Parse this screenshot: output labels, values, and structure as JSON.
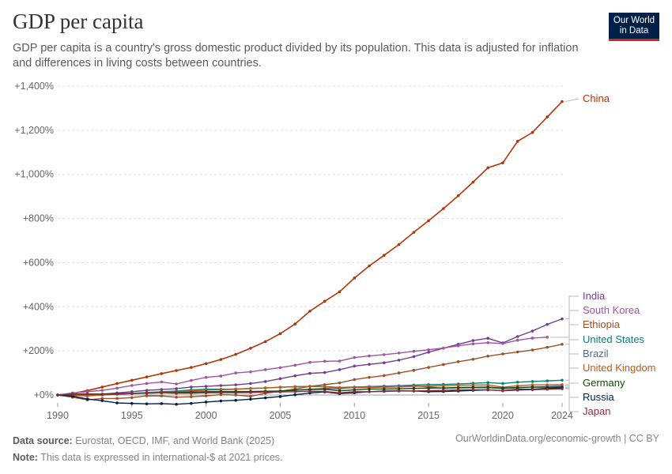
{
  "header": {
    "title": "GDP per capita",
    "subtitle": "GDP per capita is a country's gross domestic product divided by its population. This data is adjusted for inflation and differences in living costs between countries.",
    "logo_line1": "Our World",
    "logo_line2": "in Data"
  },
  "footer": {
    "source_label": "Data source:",
    "source_text": "Eurostat, OECD, IMF, and World Bank (2025)",
    "note_label": "Note:",
    "note_text": "This data is expressed in international-$ at 2021 prices.",
    "link": "OurWorldinData.org/economic-growth | CC BY"
  },
  "chart_data": {
    "type": "line",
    "title": "GDP per capita",
    "ylabel": "",
    "xlabel": "",
    "ylim": [
      -40,
      1400
    ],
    "xlim": [
      1990,
      2024
    ],
    "y_ticks": [
      0,
      200,
      400,
      600,
      800,
      1000,
      1200,
      1400
    ],
    "y_tick_labels": [
      "+0%",
      "+200%",
      "+400%",
      "+600%",
      "+800%",
      "+1,000%",
      "+1,200%",
      "+1,400%"
    ],
    "x_ticks": [
      1990,
      1995,
      2000,
      2005,
      2010,
      2015,
      2020,
      2024
    ],
    "x_tick_labels": [
      "1990",
      "1995",
      "2000",
      "2005",
      "2010",
      "2015",
      "2020",
      "2024"
    ],
    "grid": "horizontal dashed",
    "legend": "right, direct labels",
    "series": [
      {
        "name": "China",
        "color": "#b13507",
        "x": [
          1990,
          1991,
          1992,
          1993,
          1994,
          1995,
          1996,
          1997,
          1998,
          1999,
          2000,
          2001,
          2002,
          2003,
          2004,
          2005,
          2006,
          2007,
          2008,
          2009,
          2010,
          2011,
          2012,
          2013,
          2014,
          2015,
          2016,
          2017,
          2018,
          2019,
          2020,
          2021,
          2022,
          2023,
          2024
        ],
        "values": [
          0,
          7,
          20,
          36,
          52,
          67,
          82,
          97,
          111,
          125,
          142,
          161,
          184,
          212,
          242,
          278,
          322,
          380,
          425,
          468,
          530,
          585,
          633,
          682,
          737,
          790,
          845,
          903,
          965,
          1030,
          1052,
          1150,
          1190,
          1260,
          1330
        ]
      },
      {
        "name": "India",
        "color": "#6d3e91",
        "x": [
          1990,
          1991,
          1992,
          1993,
          1994,
          1995,
          1996,
          1997,
          1998,
          1999,
          2000,
          2001,
          2002,
          2003,
          2004,
          2005,
          2006,
          2007,
          2008,
          2009,
          2010,
          2011,
          2012,
          2013,
          2014,
          2015,
          2016,
          2017,
          2018,
          2019,
          2020,
          2021,
          2022,
          2023,
          2024
        ],
        "values": [
          0,
          -2,
          1,
          4,
          9,
          15,
          21,
          25,
          29,
          36,
          39,
          43,
          46,
          52,
          61,
          74,
          87,
          98,
          102,
          115,
          131,
          139,
          146,
          158,
          174,
          194,
          212,
          230,
          247,
          257,
          236,
          265,
          290,
          320,
          345
        ]
      },
      {
        "name": "South Korea",
        "color": "#a2559c",
        "x": [
          1990,
          1991,
          1992,
          1993,
          1994,
          1995,
          1996,
          1997,
          1998,
          1999,
          2000,
          2001,
          2002,
          2003,
          2004,
          2005,
          2006,
          2007,
          2008,
          2009,
          2010,
          2011,
          2012,
          2013,
          2014,
          2015,
          2016,
          2017,
          2018,
          2019,
          2020,
          2021,
          2022,
          2023
        ],
        "values": [
          0,
          9,
          15,
          21,
          31,
          43,
          52,
          59,
          50,
          66,
          80,
          86,
          100,
          105,
          115,
          124,
          135,
          148,
          153,
          154,
          170,
          177,
          183,
          190,
          198,
          205,
          213,
          223,
          232,
          237,
          233,
          248,
          258,
          262
        ]
      },
      {
        "name": "Ethiopia",
        "color": "#9a5129",
        "x": [
          1990,
          1991,
          1992,
          1993,
          1994,
          1995,
          1996,
          1997,
          1998,
          1999,
          2000,
          2001,
          2002,
          2003,
          2004,
          2005,
          2006,
          2007,
          2008,
          2009,
          2010,
          2011,
          2012,
          2013,
          2014,
          2015,
          2016,
          2017,
          2018,
          2019,
          2020,
          2021,
          2022,
          2023,
          2024
        ],
        "values": [
          0,
          -10,
          -22,
          -16,
          -16,
          -12,
          -4,
          -4,
          -10,
          -8,
          -4,
          2,
          0,
          -6,
          8,
          17,
          27,
          39,
          47,
          55,
          70,
          80,
          88,
          100,
          112,
          125,
          138,
          151,
          162,
          176,
          186,
          195,
          204,
          216,
          230
        ]
      },
      {
        "name": "United States",
        "color": "#00847e",
        "x": [
          1990,
          1991,
          1992,
          1993,
          1994,
          1995,
          1996,
          1997,
          1998,
          1999,
          2000,
          2001,
          2002,
          2003,
          2004,
          2005,
          2006,
          2007,
          2008,
          2009,
          2010,
          2011,
          2012,
          2013,
          2014,
          2015,
          2016,
          2017,
          2018,
          2019,
          2020,
          2021,
          2022,
          2023,
          2024
        ],
        "values": [
          0,
          -2,
          1,
          3,
          6,
          8,
          11,
          15,
          18,
          23,
          26,
          26,
          27,
          29,
          32,
          35,
          38,
          39,
          38,
          34,
          36,
          38,
          40,
          42,
          45,
          47,
          48,
          50,
          53,
          56,
          52,
          58,
          61,
          64,
          67
        ]
      },
      {
        "name": "Brazil",
        "color": "#4c6a9c",
        "x": [
          1990,
          1991,
          1992,
          1993,
          1994,
          1995,
          1996,
          1997,
          1998,
          1999,
          2000,
          2001,
          2002,
          2003,
          2004,
          2005,
          2006,
          2007,
          2008,
          2009,
          2010,
          2011,
          2012,
          2013,
          2014,
          2015,
          2016,
          2017,
          2018,
          2019,
          2020,
          2021,
          2022,
          2023,
          2024
        ],
        "values": [
          0,
          -1,
          -4,
          0,
          4,
          7,
          8,
          10,
          8,
          8,
          11,
          11,
          12,
          12,
          16,
          18,
          21,
          26,
          30,
          28,
          35,
          38,
          40,
          42,
          42,
          36,
          31,
          32,
          33,
          33,
          29,
          33,
          36,
          38,
          41
        ]
      },
      {
        "name": "United Kingdom",
        "color": "#c05917",
        "x": [
          1990,
          1991,
          1992,
          1993,
          1994,
          1995,
          1996,
          1997,
          1998,
          1999,
          2000,
          2001,
          2002,
          2003,
          2004,
          2005,
          2006,
          2007,
          2008,
          2009,
          2010,
          2011,
          2012,
          2013,
          2014,
          2015,
          2016,
          2017,
          2018,
          2019,
          2020,
          2021,
          2022,
          2023,
          2024
        ],
        "values": [
          0,
          -2,
          -2,
          0,
          4,
          7,
          9,
          12,
          15,
          18,
          22,
          24,
          26,
          30,
          32,
          35,
          37,
          39,
          37,
          32,
          33,
          34,
          35,
          36,
          39,
          40,
          42,
          44,
          45,
          46,
          35,
          42,
          46,
          46,
          47
        ]
      },
      {
        "name": "Germany",
        "color": "#18470f",
        "x": [
          1990,
          1991,
          1992,
          1993,
          1994,
          1995,
          1996,
          1997,
          1998,
          1999,
          2000,
          2001,
          2002,
          2003,
          2004,
          2005,
          2006,
          2007,
          2008,
          2009,
          2010,
          2011,
          2012,
          2013,
          2014,
          2015,
          2016,
          2017,
          2018,
          2019,
          2020,
          2021,
          2022,
          2023,
          2024
        ],
        "values": [
          0,
          4,
          5,
          4,
          6,
          7,
          8,
          10,
          11,
          13,
          15,
          16,
          16,
          16,
          17,
          18,
          22,
          25,
          26,
          19,
          23,
          27,
          27,
          28,
          30,
          31,
          32,
          34,
          35,
          36,
          31,
          34,
          36,
          35,
          35
        ]
      },
      {
        "name": "Russia",
        "color": "#002147",
        "x": [
          1990,
          1991,
          1992,
          1993,
          1994,
          1995,
          1996,
          1997,
          1998,
          1999,
          2000,
          2001,
          2002,
          2003,
          2004,
          2005,
          2006,
          2007,
          2008,
          2009,
          2010,
          2011,
          2012,
          2013,
          2014,
          2015,
          2016,
          2017,
          2018,
          2019,
          2020,
          2021,
          2022,
          2023,
          2024
        ],
        "values": [
          0,
          -5,
          -18,
          -26,
          -36,
          -38,
          -40,
          -39,
          -42,
          -38,
          -32,
          -27,
          -24,
          -19,
          -13,
          -7,
          1,
          9,
          14,
          6,
          10,
          15,
          18,
          19,
          18,
          15,
          16,
          18,
          21,
          23,
          20,
          26,
          26,
          30,
          32
        ]
      },
      {
        "name": "Japan",
        "color": "#883039",
        "x": [
          1990,
          1991,
          1992,
          1993,
          1994,
          1995,
          1996,
          1997,
          1998,
          1999,
          2000,
          2001,
          2002,
          2003,
          2004,
          2005,
          2006,
          2007,
          2008,
          2009,
          2010,
          2011,
          2012,
          2013,
          2014,
          2015,
          2016,
          2017,
          2018,
          2019,
          2020,
          2021,
          2022,
          2023,
          2024
        ],
        "values": [
          0,
          3,
          4,
          3,
          4,
          6,
          9,
          10,
          8,
          8,
          10,
          10,
          10,
          11,
          13,
          14,
          15,
          17,
          16,
          10,
          15,
          15,
          16,
          18,
          18,
          20,
          21,
          23,
          24,
          24,
          19,
          22,
          24,
          26,
          28
        ]
      }
    ]
  }
}
